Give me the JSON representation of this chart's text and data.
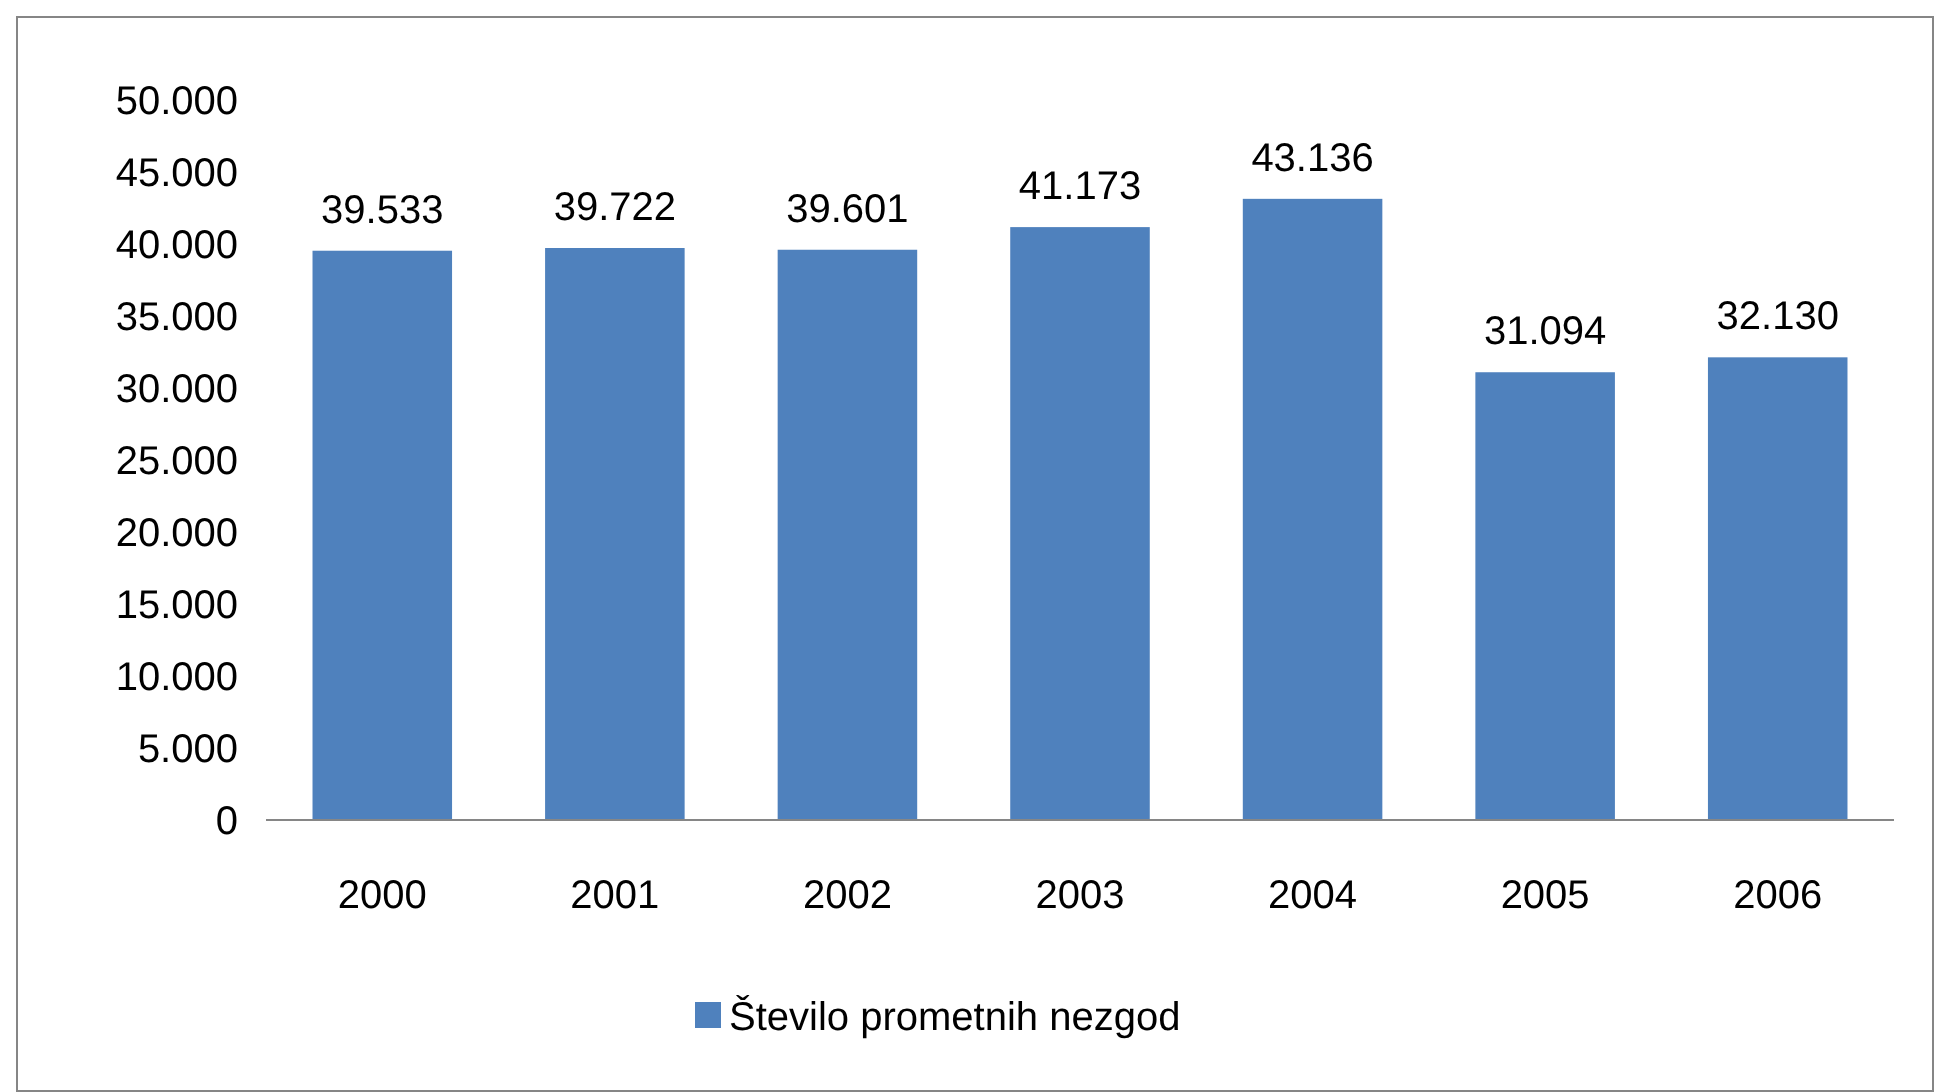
{
  "chart_data": {
    "type": "bar",
    "categories": [
      "2000",
      "2001",
      "2002",
      "2003",
      "2004",
      "2005",
      "2006"
    ],
    "series": [
      {
        "name": "Število prometnih nezgod",
        "color": "#4f81bd",
        "values": [
          39533,
          39722,
          39601,
          41173,
          43136,
          31094,
          32130
        ],
        "value_labels": [
          "39.533",
          "39.722",
          "39.601",
          "41.173",
          "43.136",
          "31.094",
          "32.130"
        ]
      }
    ],
    "ylim": [
      0,
      50000
    ],
    "yticks": [
      {
        "value": 0,
        "label": "0"
      },
      {
        "value": 5000,
        "label": "5.000"
      },
      {
        "value": 10000,
        "label": "10.000"
      },
      {
        "value": 15000,
        "label": "15.000"
      },
      {
        "value": 20000,
        "label": "20.000"
      },
      {
        "value": 25000,
        "label": "25.000"
      },
      {
        "value": 30000,
        "label": "30.000"
      },
      {
        "value": 35000,
        "label": "35.000"
      },
      {
        "value": 40000,
        "label": "40.000"
      },
      {
        "value": 45000,
        "label": "45.000"
      },
      {
        "value": 50000,
        "label": "50.000"
      }
    ],
    "grid": false,
    "legend": "bottom"
  }
}
